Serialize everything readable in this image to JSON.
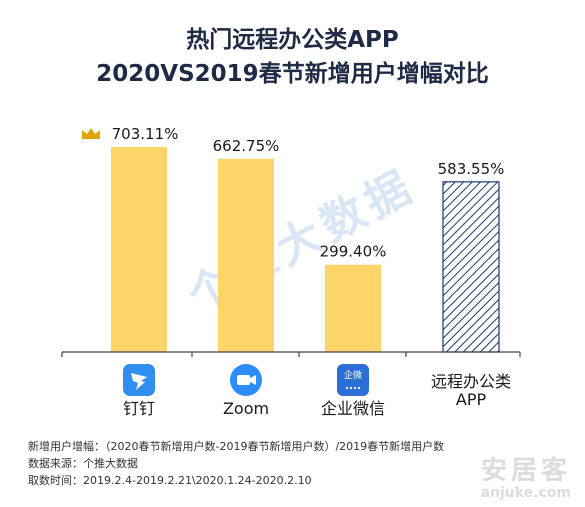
{
  "title_line1": "热门远程办公类APP",
  "title_line2": "2020VS2019春节新增用户增幅对比",
  "watermark": "个推大数据",
  "brand_watermark": {
    "cn": "安居客",
    "en": "anjuke.com"
  },
  "colors": {
    "bar": "#ffd56a",
    "axis": "#444444",
    "hatch": "#1b3a6b",
    "hatch_bg": "#ffffff"
  },
  "notes": [
    "新增用户增幅：（2020春节新增用户数-2019春节新增用户数）/2019春节新增用户数",
    "数据来源：个推大数据",
    "取数时间：2019.2.4-2019.2.21\\2020.1.24-2020.2.10"
  ],
  "chart_data": {
    "type": "bar",
    "categories": [
      "钉钉",
      "Zoom",
      "企业微信",
      "远程办公类APP"
    ],
    "category_lines": [
      [
        "钉钉"
      ],
      [
        "Zoom"
      ],
      [
        "企业微信"
      ],
      [
        "远程办公类",
        "APP"
      ]
    ],
    "values": [
      703.11,
      662.75,
      299.4,
      583.55
    ],
    "value_labels": [
      "703.11%",
      "662.75%",
      "299.40%",
      "583.55%"
    ],
    "hatched": [
      false,
      false,
      false,
      true
    ],
    "crown_on": 0,
    "logos": [
      "dingtalk-logo",
      "zoom-logo",
      "wecom-logo",
      null
    ],
    "wecom_logo_text": "企微",
    "title": "",
    "xlabel": "",
    "ylabel": "",
    "ylim": [
      0,
      703.11
    ],
    "grid": false
  }
}
